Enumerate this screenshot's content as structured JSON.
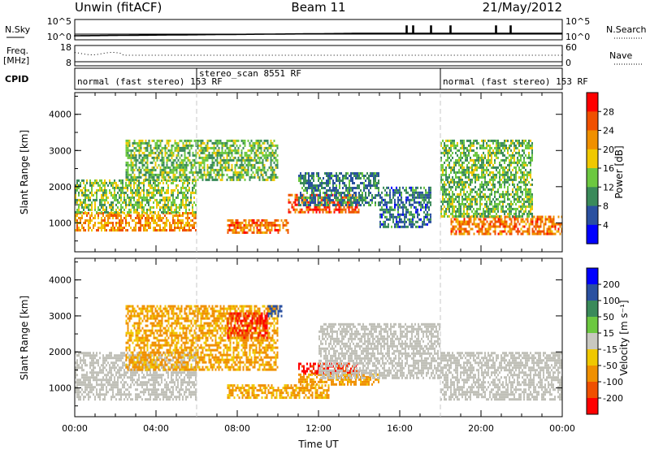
{
  "header": {
    "station": "Unwin (fitACF)",
    "beam": "Beam 11",
    "date": "21/May/2012"
  },
  "sky_panel": {
    "left_label": "N.Sky",
    "left_ticks": [
      "10^5",
      "10^0"
    ],
    "right_ticks": [
      "10^5",
      "10^0"
    ],
    "right_label": "N.Search"
  },
  "freq_panel": {
    "left_label": "Freq.",
    "left_unit": "[MHz]",
    "left_ticks": [
      "18",
      "8"
    ],
    "right_ticks": [
      "60",
      "0"
    ],
    "right_label": "Nave"
  },
  "cpid_panel": {
    "label": "CPID",
    "segments": [
      {
        "label": "normal (fast stereo) 153 RF",
        "start_hour": 0,
        "end_hour": 6
      },
      {
        "label": "stereo_scan 8551 RF",
        "start_hour": 6,
        "end_hour": 18
      },
      {
        "label": "normal (fast stereo) 153 RF",
        "start_hour": 18,
        "end_hour": 24
      }
    ]
  },
  "colors": {
    "ground_scatter": "#c0c0b8",
    "power_scale": [
      "#0000ff",
      "#2a50a0",
      "#3a8a5a",
      "#6cc840",
      "#f0c800",
      "#f09000",
      "#f05000",
      "#ff0000"
    ],
    "velocity_scale": [
      "#0000ff",
      "#2a50a0",
      "#3a8a5a",
      "#6cc840",
      "#c8c8c0",
      "#f0c800",
      "#f09000",
      "#f05000",
      "#ff0000"
    ]
  },
  "chart_data": [
    {
      "type": "heatmap",
      "title": "Power",
      "ylabel": "Slant Range [km]",
      "xlabel": "",
      "xlim": [
        0,
        24
      ],
      "ylim": [
        200,
        4600
      ],
      "yticks": [
        "1000",
        "2000",
        "3000",
        "4000"
      ],
      "colorbar_label": "Power [dB]",
      "colorbar_ticks": [
        "28",
        "24",
        "20",
        "16",
        "12",
        "8",
        "4"
      ],
      "colorbar_range": [
        0,
        32
      ],
      "features": [
        {
          "hours": [
            0.0,
            6.0
          ],
          "range_km": [
            800,
            1300
          ],
          "db": 22
        },
        {
          "hours": [
            0.0,
            6.0
          ],
          "range_km": [
            1300,
            2200
          ],
          "db": 14
        },
        {
          "hours": [
            2.5,
            10.0
          ],
          "range_km": [
            2200,
            3300
          ],
          "db": 13
        },
        {
          "hours": [
            7.5,
            10.5
          ],
          "range_km": [
            700,
            1100
          ],
          "db": 24
        },
        {
          "hours": [
            10.5,
            14.0
          ],
          "range_km": [
            1300,
            1800
          ],
          "db": 26
        },
        {
          "hours": [
            11.0,
            15.0
          ],
          "range_km": [
            1500,
            2400
          ],
          "db": 9
        },
        {
          "hours": [
            15.0,
            17.5
          ],
          "range_km": [
            900,
            2000
          ],
          "db": 8
        },
        {
          "hours": [
            18.5,
            24.0
          ],
          "range_km": [
            700,
            1200
          ],
          "db": 24
        },
        {
          "hours": [
            18.0,
            22.5
          ],
          "range_km": [
            1200,
            3300
          ],
          "db": 13
        }
      ]
    },
    {
      "type": "heatmap",
      "title": "Velocity",
      "ylabel": "Slant Range [km]",
      "xlabel": "Time UT",
      "xlim": [
        0,
        24
      ],
      "ylim": [
        200,
        4600
      ],
      "xticks": [
        "00:00",
        "04:00",
        "08:00",
        "12:00",
        "16:00",
        "20:00",
        "00:00"
      ],
      "yticks": [
        "1000",
        "2000",
        "3000",
        "4000"
      ],
      "colorbar_label": "Velocity [m s⁻¹]",
      "colorbar_ticks": [
        "200",
        "100",
        "50",
        "15",
        "-15",
        "-50",
        "-100",
        "-200"
      ],
      "colorbar_range": [
        -250,
        250
      ],
      "features": [
        {
          "hours": [
            0.0,
            6.0
          ],
          "range_km": [
            700,
            2000
          ],
          "velocity": 0,
          "ground_scatter": true
        },
        {
          "hours": [
            2.5,
            10.0
          ],
          "range_km": [
            1500,
            3300
          ],
          "velocity": -60
        },
        {
          "hours": [
            7.5,
            9.5
          ],
          "range_km": [
            2400,
            3100
          ],
          "velocity": -200
        },
        {
          "hours": [
            9.5,
            10.3
          ],
          "range_km": [
            3000,
            3300
          ],
          "velocity": 150
        },
        {
          "hours": [
            7.5,
            12.5
          ],
          "range_km": [
            700,
            1100
          ],
          "velocity": -60
        },
        {
          "hours": [
            11.0,
            14.0
          ],
          "range_km": [
            1400,
            1700
          ],
          "velocity": -210
        },
        {
          "hours": [
            11.0,
            15.0
          ],
          "range_km": [
            1100,
            1400
          ],
          "velocity": -70
        },
        {
          "hours": [
            12.0,
            18.0
          ],
          "range_km": [
            1300,
            2800
          ],
          "velocity": 0,
          "ground_scatter": true
        },
        {
          "hours": [
            18.0,
            24.0
          ],
          "range_km": [
            700,
            2000
          ],
          "velocity": 0,
          "ground_scatter": true
        }
      ]
    }
  ]
}
